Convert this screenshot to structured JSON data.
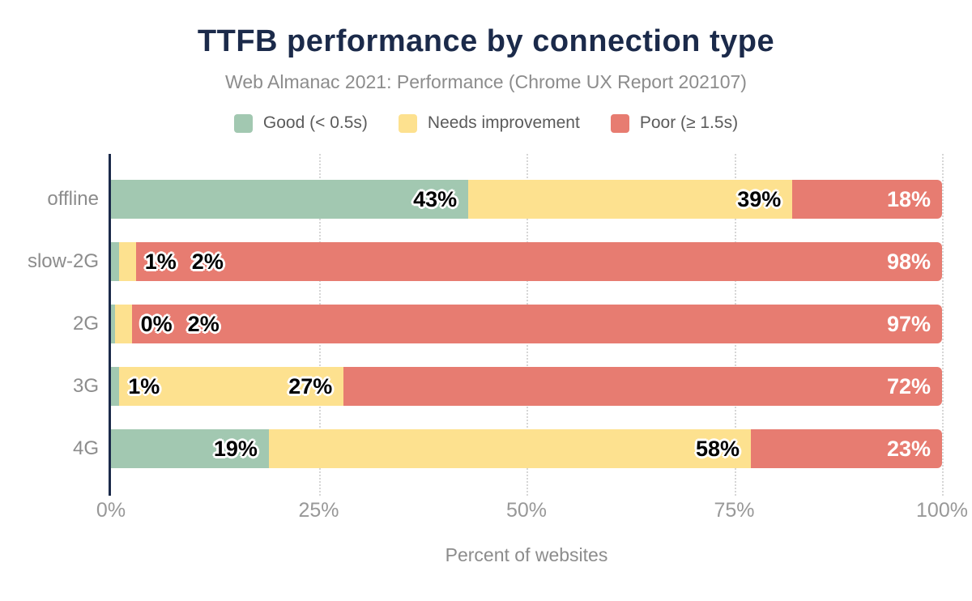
{
  "chart_data": {
    "type": "bar",
    "stacked": true,
    "orientation": "horizontal",
    "title": "TTFB performance by connection type",
    "subtitle": "Web Almanac 2021: Performance (Chrome UX Report 202107)",
    "xlabel": "Percent of websites",
    "categories": [
      "offline",
      "slow-2G",
      "2G",
      "3G",
      "4G"
    ],
    "series": [
      {
        "name": "Good (< 0.5s)",
        "key": "good",
        "color": "#a2c8b1",
        "values": [
          43,
          1,
          0,
          1,
          19
        ]
      },
      {
        "name": "Needs improvement",
        "key": "needs-improvement",
        "color": "#fde18f",
        "values": [
          39,
          2,
          2,
          27,
          58
        ]
      },
      {
        "name": "Poor (≥ 1.5s)",
        "key": "poor",
        "color": "#e77c71",
        "values": [
          18,
          98,
          97,
          72,
          23
        ]
      }
    ],
    "value_suffix": "%",
    "xlim": [
      0,
      100
    ],
    "x_tick_values": [
      0,
      25,
      50,
      75,
      100
    ],
    "x_tick_labels": [
      "0%",
      "25%",
      "50%",
      "75%",
      "100%"
    ],
    "grid": "dotted-vertical",
    "legend_position": "top",
    "colors": {
      "title": "#1b2a4a",
      "axis": "#1b2a4a",
      "muted_text": "#8c8c8c",
      "label_dark": "#000000",
      "label_light": "#ffffff"
    }
  }
}
